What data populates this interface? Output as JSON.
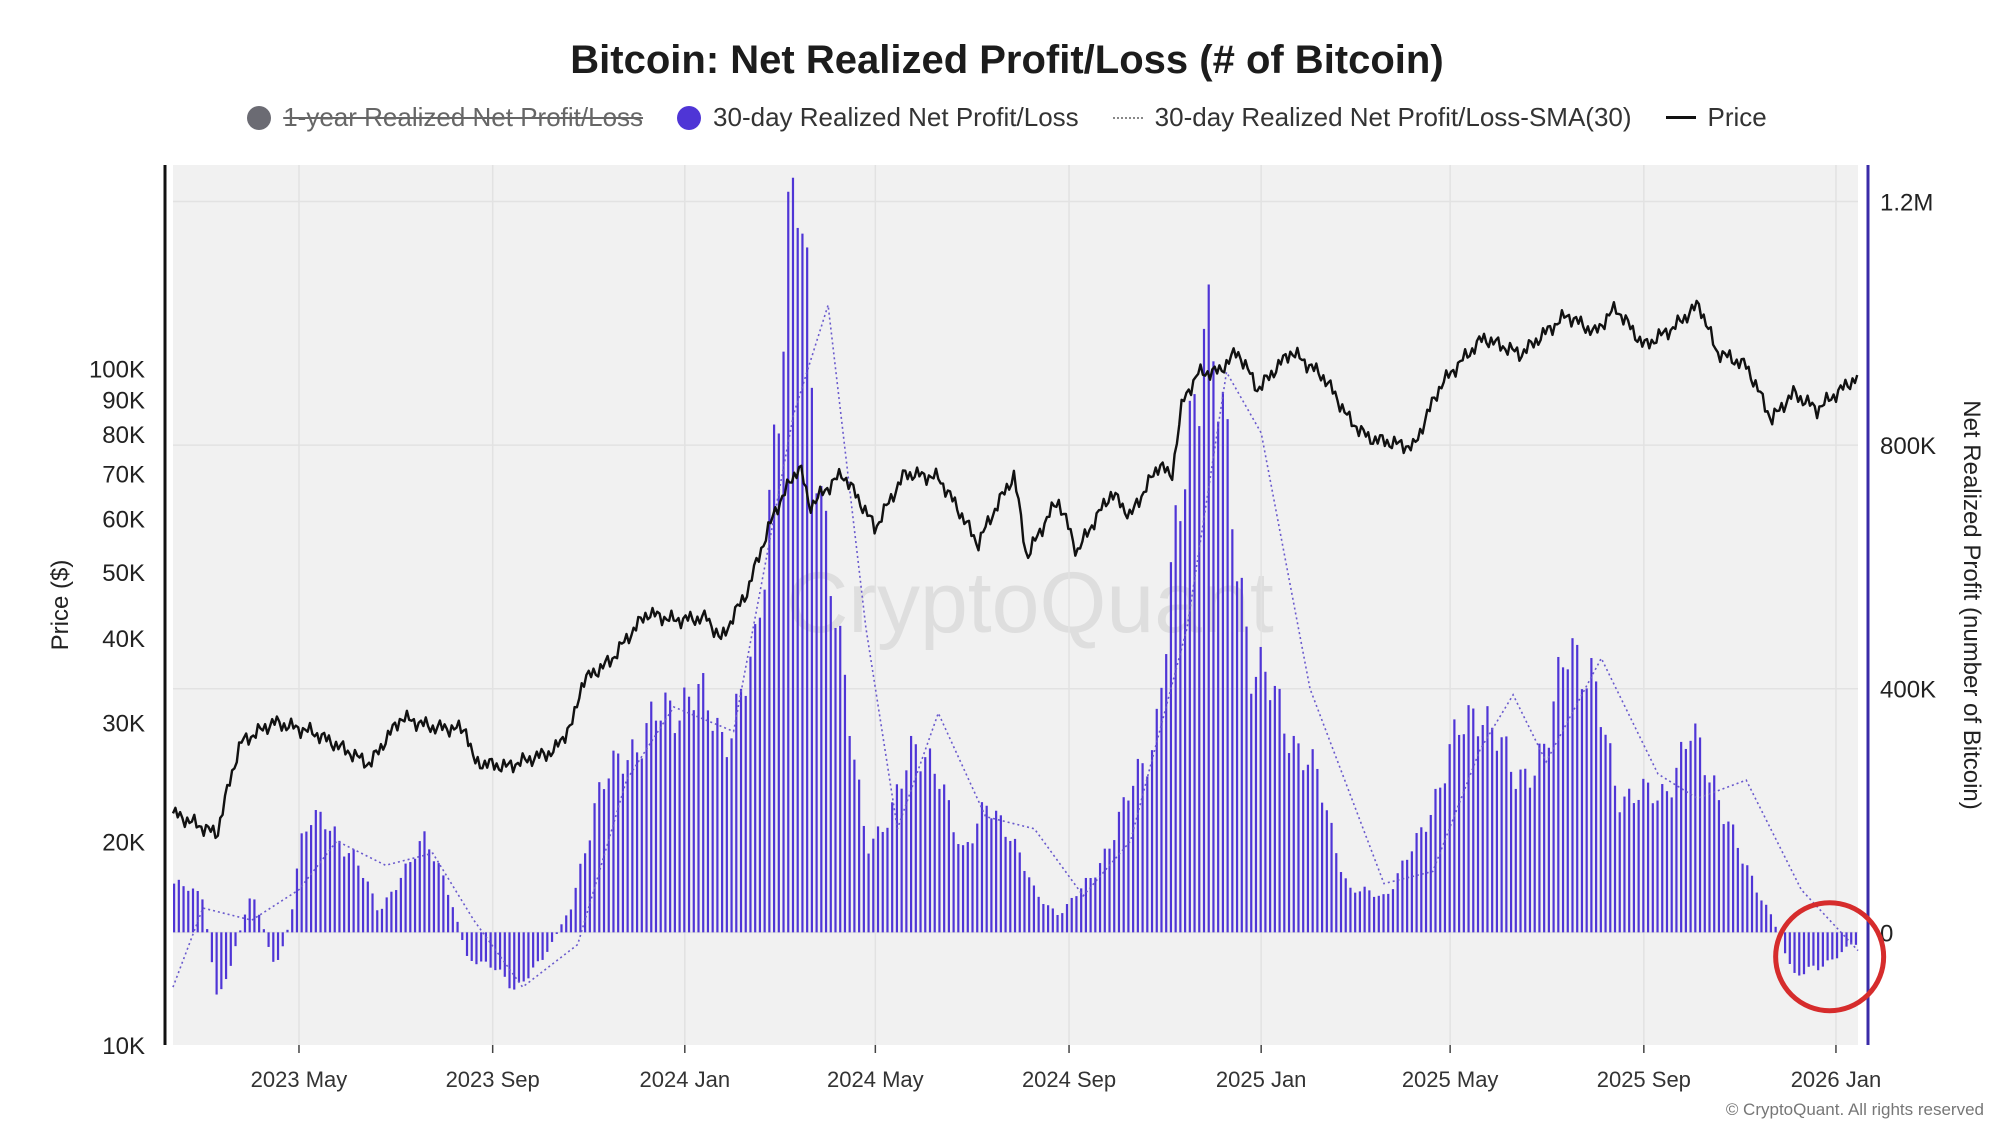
{
  "chart_data": {
    "type": "bar",
    "title": "Bitcoin: Net Realized Profit/Loss (# of Bitcoin)",
    "legend": [
      {
        "label": "1-year Realized Net Profit/Loss",
        "color": "#6b6b73",
        "marker": "dot",
        "hidden": true
      },
      {
        "label": "30-day Realized Net Profit/Loss",
        "color": "#4f35d6",
        "marker": "dot",
        "hidden": false
      },
      {
        "label": "30-day Realized Net Profit/Loss-SMA(30)",
        "color": "#6a5acd",
        "marker": "dotted-line",
        "hidden": false
      },
      {
        "label": "Price",
        "color": "#111111",
        "marker": "line",
        "hidden": false
      }
    ],
    "left_axis": {
      "label": "Price ($)",
      "scale": "log",
      "range": [
        10000,
        200000
      ],
      "ticks": [
        {
          "v": 10000,
          "label": "10K"
        },
        {
          "v": 20000,
          "label": "20K"
        },
        {
          "v": 30000,
          "label": "30K"
        },
        {
          "v": 40000,
          "label": "40K"
        },
        {
          "v": 50000,
          "label": "50K"
        },
        {
          "v": 60000,
          "label": "60K"
        },
        {
          "v": 70000,
          "label": "70K"
        },
        {
          "v": 80000,
          "label": "80K"
        },
        {
          "v": 90000,
          "label": "90K"
        },
        {
          "v": 100000,
          "label": "100K"
        }
      ]
    },
    "right_axis": {
      "label": "Net Realized Profit (number of Bitcoin)",
      "range": [
        -185000,
        1260000
      ],
      "ticks": [
        {
          "v": 0,
          "label": "0"
        },
        {
          "v": 400000,
          "label": "400K"
        },
        {
          "v": 800000,
          "label": "800K"
        },
        {
          "v": 1200000,
          "label": "1.2M"
        }
      ]
    },
    "x_axis": {
      "start": "2023-02-10",
      "end": "2026-01-15",
      "ticks": [
        {
          "date": "2023-05-01",
          "label": "2023 May"
        },
        {
          "date": "2023-09-01",
          "label": "2023 Sep"
        },
        {
          "date": "2024-01-01",
          "label": "2024 Jan"
        },
        {
          "date": "2024-05-01",
          "label": "2024 May"
        },
        {
          "date": "2024-09-01",
          "label": "2024 Sep"
        },
        {
          "date": "2025-01-01",
          "label": "2025 Jan"
        },
        {
          "date": "2025-05-01",
          "label": "2025 May"
        },
        {
          "date": "2025-09-01",
          "label": "2025 Sep"
        },
        {
          "date": "2026-01-01",
          "label": "2026 Jan"
        }
      ]
    },
    "series": [
      {
        "name": "30-day Realized Net Profit/Loss",
        "kind": "bar",
        "points": [
          [
            "2023-02-10",
            80000
          ],
          [
            "2023-02-28",
            60000
          ],
          [
            "2023-03-10",
            -120000
          ],
          [
            "2023-03-20",
            -30000
          ],
          [
            "2023-04-01",
            70000
          ],
          [
            "2023-04-15",
            -60000
          ],
          [
            "2023-04-25",
            20000
          ],
          [
            "2023-05-01",
            150000
          ],
          [
            "2023-05-07",
            200000
          ],
          [
            "2023-05-25",
            150000
          ],
          [
            "2023-06-05",
            130000
          ],
          [
            "2023-06-20",
            30000
          ],
          [
            "2023-07-05",
            100000
          ],
          [
            "2023-07-20",
            150000
          ],
          [
            "2023-08-01",
            90000
          ],
          [
            "2023-08-15",
            -40000
          ],
          [
            "2023-09-01",
            -60000
          ],
          [
            "2023-09-15",
            -90000
          ],
          [
            "2023-10-01",
            -50000
          ],
          [
            "2023-10-20",
            40000
          ],
          [
            "2023-11-05",
            220000
          ],
          [
            "2023-11-25",
            300000
          ],
          [
            "2023-12-15",
            350000
          ],
          [
            "2024-01-05",
            400000
          ],
          [
            "2024-01-25",
            320000
          ],
          [
            "2024-02-15",
            450000
          ],
          [
            "2024-03-05",
            1100000
          ],
          [
            "2024-03-12",
            1190000
          ],
          [
            "2024-03-25",
            800000
          ],
          [
            "2024-04-10",
            400000
          ],
          [
            "2024-04-25",
            150000
          ],
          [
            "2024-05-10",
            180000
          ],
          [
            "2024-05-25",
            330000
          ],
          [
            "2024-06-10",
            240000
          ],
          [
            "2024-06-25",
            140000
          ],
          [
            "2024-07-10",
            200000
          ],
          [
            "2024-07-25",
            170000
          ],
          [
            "2024-08-10",
            60000
          ],
          [
            "2024-08-25",
            30000
          ],
          [
            "2024-09-15",
            90000
          ],
          [
            "2024-10-05",
            200000
          ],
          [
            "2024-10-25",
            330000
          ],
          [
            "2024-11-15",
            800000
          ],
          [
            "2024-11-25",
            1050000
          ],
          [
            "2024-12-10",
            750000
          ],
          [
            "2024-12-25",
            450000
          ],
          [
            "2025-01-15",
            350000
          ],
          [
            "2025-02-05",
            250000
          ],
          [
            "2025-02-25",
            70000
          ],
          [
            "2025-03-20",
            60000
          ],
          [
            "2025-04-10",
            150000
          ],
          [
            "2025-05-01",
            300000
          ],
          [
            "2025-05-20",
            380000
          ],
          [
            "2025-06-10",
            250000
          ],
          [
            "2025-07-01",
            300000
          ],
          [
            "2025-07-15",
            500000
          ],
          [
            "2025-07-30",
            400000
          ],
          [
            "2025-08-15",
            230000
          ],
          [
            "2025-09-10",
            220000
          ],
          [
            "2025-09-30",
            320000
          ],
          [
            "2025-10-15",
            250000
          ],
          [
            "2025-11-01",
            120000
          ],
          [
            "2025-11-20",
            30000
          ],
          [
            "2025-12-05",
            -70000
          ],
          [
            "2025-12-20",
            -60000
          ],
          [
            "2026-01-10",
            -20000
          ]
        ]
      },
      {
        "name": "30-day Realized Net Profit/Loss-SMA(30)",
        "kind": "line-dotted",
        "points": [
          [
            "2023-02-10",
            -90000
          ],
          [
            "2023-03-01",
            40000
          ],
          [
            "2023-04-01",
            20000
          ],
          [
            "2023-05-01",
            70000
          ],
          [
            "2023-05-25",
            150000
          ],
          [
            "2023-06-25",
            110000
          ],
          [
            "2023-07-25",
            130000
          ],
          [
            "2023-08-20",
            20000
          ],
          [
            "2023-09-20",
            -90000
          ],
          [
            "2023-10-25",
            -20000
          ],
          [
            "2023-11-25",
            250000
          ],
          [
            "2023-12-25",
            370000
          ],
          [
            "2024-02-01",
            330000
          ],
          [
            "2024-03-10",
            850000
          ],
          [
            "2024-04-01",
            1030000
          ],
          [
            "2024-04-25",
            500000
          ],
          [
            "2024-05-15",
            170000
          ],
          [
            "2024-06-10",
            360000
          ],
          [
            "2024-07-10",
            190000
          ],
          [
            "2024-08-10",
            170000
          ],
          [
            "2024-09-10",
            60000
          ],
          [
            "2024-10-10",
            150000
          ],
          [
            "2024-11-15",
            500000
          ],
          [
            "2024-12-10",
            920000
          ],
          [
            "2025-01-01",
            820000
          ],
          [
            "2025-02-01",
            400000
          ],
          [
            "2025-03-20",
            80000
          ],
          [
            "2025-04-20",
            100000
          ],
          [
            "2025-05-20",
            300000
          ],
          [
            "2025-06-10",
            390000
          ],
          [
            "2025-07-01",
            280000
          ],
          [
            "2025-08-05",
            450000
          ],
          [
            "2025-09-10",
            260000
          ],
          [
            "2025-10-05",
            220000
          ],
          [
            "2025-11-05",
            250000
          ],
          [
            "2025-12-10",
            70000
          ],
          [
            "2026-01-15",
            -30000
          ]
        ]
      },
      {
        "name": "Price",
        "kind": "line",
        "points": [
          [
            "2023-02-10",
            22000
          ],
          [
            "2023-03-10",
            20500
          ],
          [
            "2023-03-25",
            28000
          ],
          [
            "2023-04-15",
            30000
          ],
          [
            "2023-05-10",
            29000
          ],
          [
            "2023-06-15",
            26000
          ],
          [
            "2023-07-05",
            30500
          ],
          [
            "2023-07-25",
            29500
          ],
          [
            "2023-08-15",
            29300
          ],
          [
            "2023-08-20",
            26200
          ],
          [
            "2023-09-10",
            25800
          ],
          [
            "2023-10-10",
            27200
          ],
          [
            "2023-10-22",
            30000
          ],
          [
            "2023-10-28",
            34500
          ],
          [
            "2023-11-15",
            37000
          ],
          [
            "2023-12-08",
            43500
          ],
          [
            "2023-12-25",
            42500
          ],
          [
            "2024-01-15",
            42800
          ],
          [
            "2024-01-24",
            39700
          ],
          [
            "2024-02-10",
            47000
          ],
          [
            "2024-02-28",
            62000
          ],
          [
            "2024-03-14",
            72000
          ],
          [
            "2024-03-20",
            62500
          ],
          [
            "2024-04-10",
            70000
          ],
          [
            "2024-05-01",
            58000
          ],
          [
            "2024-05-20",
            70000
          ],
          [
            "2024-06-10",
            69000
          ],
          [
            "2024-07-05",
            55000
          ],
          [
            "2024-07-28",
            69500
          ],
          [
            "2024-08-05",
            52500
          ],
          [
            "2024-08-25",
            64000
          ],
          [
            "2024-09-06",
            53500
          ],
          [
            "2024-09-28",
            65500
          ],
          [
            "2024-10-10",
            60500
          ],
          [
            "2024-10-29",
            72500
          ],
          [
            "2024-11-05",
            68500
          ],
          [
            "2024-11-12",
            89000
          ],
          [
            "2024-11-22",
            98500
          ],
          [
            "2024-12-05",
            99000
          ],
          [
            "2024-12-17",
            106000
          ],
          [
            "2024-12-30",
            93000
          ],
          [
            "2025-01-20",
            106000
          ],
          [
            "2025-02-10",
            97000
          ],
          [
            "2025-02-26",
            84000
          ],
          [
            "2025-03-10",
            79000
          ],
          [
            "2025-04-08",
            76500
          ],
          [
            "2025-04-25",
            94500
          ],
          [
            "2025-05-22",
            111000
          ],
          [
            "2025-06-15",
            105000
          ],
          [
            "2025-07-14",
            120000
          ],
          [
            "2025-08-01",
            113000
          ],
          [
            "2025-08-14",
            123000
          ],
          [
            "2025-09-01",
            108000
          ],
          [
            "2025-09-20",
            115000
          ],
          [
            "2025-10-06",
            124500
          ],
          [
            "2025-10-17",
            106000
          ],
          [
            "2025-11-05",
            101000
          ],
          [
            "2025-11-21",
            84000
          ],
          [
            "2025-12-05",
            92000
          ],
          [
            "2025-12-20",
            87000
          ],
          [
            "2026-01-14",
            97000
          ]
        ]
      }
    ],
    "grid": true,
    "watermark": "CryptoQuant",
    "highlight": {
      "shape": "circle",
      "color": "#d62c2c",
      "date": "2025-12-28",
      "value": -40000
    }
  },
  "footer": {
    "copyright": "© CryptoQuant. All rights reserved"
  }
}
